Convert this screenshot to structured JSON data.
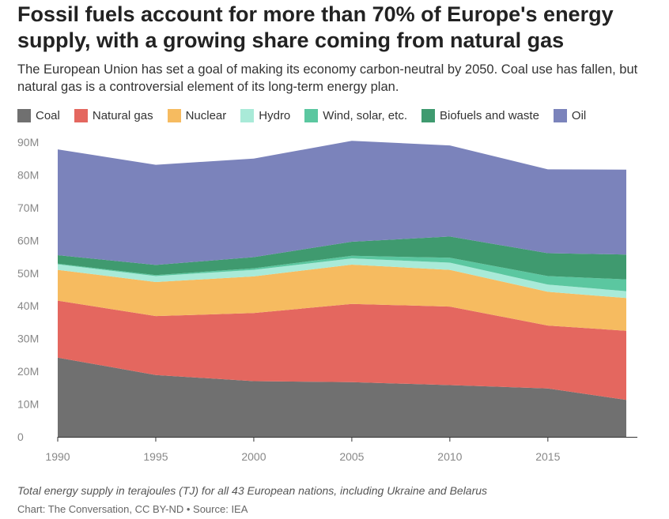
{
  "title": "Fossil fuels account for more than 70% of Europe's energy supply, with a growing share coming from natural gas",
  "subtitle": "The European Union has set a goal of making its economy carbon-neutral by 2050. Coal use has fallen, but natural gas is a controversial element of its long-term energy plan.",
  "footer": {
    "note": "Total energy supply in terajoules (TJ) for all 43 European nations, including Ukraine and Belarus",
    "source": "Chart: The Conversation, CC BY-ND • Source: IEA"
  },
  "chart_data": {
    "type": "area",
    "stacked": true,
    "x": [
      1990,
      1995,
      2000,
      2005,
      2010,
      2015,
      2019
    ],
    "xticks": [
      "1990",
      "1995",
      "2000",
      "2005",
      "2010",
      "2015"
    ],
    "xtick_values": [
      1990,
      1995,
      2000,
      2005,
      2010,
      2015
    ],
    "xlim": [
      1990,
      2019
    ],
    "ylim": [
      0,
      90
    ],
    "yticks": [
      "0",
      "10M",
      "20M",
      "30M",
      "40M",
      "50M",
      "60M",
      "70M",
      "80M",
      "90M"
    ],
    "ytick_values": [
      0,
      10,
      20,
      30,
      40,
      50,
      60,
      70,
      80,
      90
    ],
    "unit": "millions of TJ",
    "legend_position": "top",
    "series": [
      {
        "name": "Coal",
        "color": "#707070",
        "values": [
          24.2,
          18.9,
          17.0,
          16.7,
          15.8,
          14.8,
          11.3
        ]
      },
      {
        "name": "Natural gas",
        "color": "#e4675f",
        "values": [
          17.4,
          18.0,
          20.8,
          23.9,
          24.0,
          19.2,
          21.1
        ]
      },
      {
        "name": "Nuclear",
        "color": "#f6bb60",
        "values": [
          9.4,
          10.4,
          11.2,
          12.0,
          11.2,
          10.3,
          10.0
        ]
      },
      {
        "name": "Hydro",
        "color": "#a9ead8",
        "values": [
          1.7,
          1.8,
          2.0,
          1.9,
          2.2,
          2.2,
          2.1
        ]
      },
      {
        "name": "Wind, solar, etc.",
        "color": "#5bc7a0",
        "values": [
          0.2,
          0.3,
          0.5,
          0.8,
          1.5,
          2.6,
          3.6
        ]
      },
      {
        "name": "Biofuels and waste",
        "color": "#3f9a6f",
        "values": [
          2.6,
          3.1,
          3.4,
          4.3,
          6.5,
          7.0,
          7.6
        ]
      },
      {
        "name": "Oil",
        "color": "#7b83bb",
        "values": [
          32.3,
          30.6,
          30.1,
          30.8,
          27.8,
          25.6,
          25.9
        ]
      }
    ]
  }
}
